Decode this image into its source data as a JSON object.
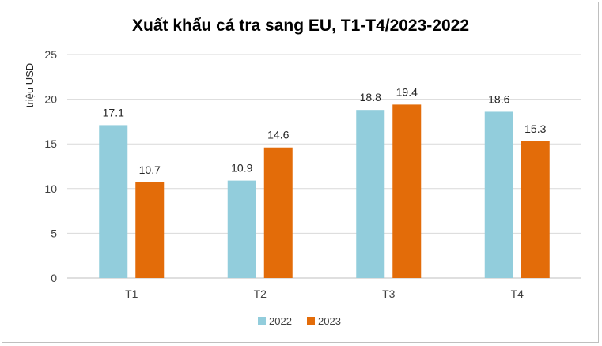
{
  "chart_data": {
    "type": "bar",
    "title": "Xuất khẩu cá tra sang EU, T1-T4/2023-2022",
    "ylabel": "triệu USD",
    "xlabel": "",
    "categories": [
      "T1",
      "T2",
      "T3",
      "T4"
    ],
    "series": [
      {
        "name": "2022",
        "values": [
          17.1,
          10.9,
          18.8,
          18.6
        ],
        "color": "#92cddc"
      },
      {
        "name": "2023",
        "values": [
          10.7,
          14.6,
          19.4,
          15.3
        ],
        "color": "#e36c09"
      }
    ],
    "ylim": [
      0,
      25
    ],
    "yticks": [
      0,
      5,
      10,
      15,
      20,
      25
    ],
    "grid": true,
    "legend": "bottom"
  }
}
